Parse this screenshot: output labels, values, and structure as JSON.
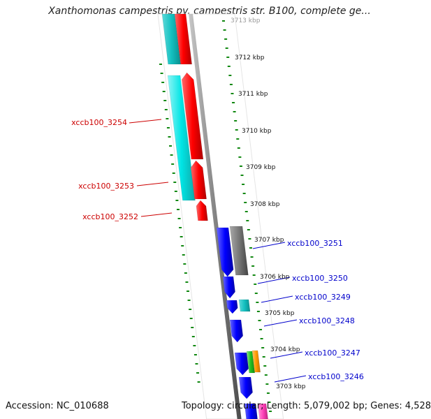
{
  "title": "Xanthomonas campestris pv. campestris str. B100, complete ge...",
  "footer": {
    "accession": "Accession: NC_010688",
    "summary": "Topology: circular; Length: 5,079,002 bp; Genes: 4,528"
  },
  "colors": {
    "cds_forward": "#ff0000",
    "cds_reverse": "#0000ff",
    "ruler_ticks": "#118811",
    "backbone": "#888888",
    "label_forward": "#cc0000",
    "label_reverse": "#0000cc"
  },
  "ruler": {
    "labels": [
      "3713 kbp",
      "3712 kbp",
      "3711 kbp",
      "3710 kbp",
      "3709 kbp",
      "3708 kbp",
      "3707 kbp",
      "3706 kbp",
      "3705 kbp",
      "3704 kbp",
      "3703 kbp"
    ]
  },
  "genes": [
    {
      "label": "xccb100_3254",
      "strand": "forward"
    },
    {
      "label": "xccb100_3253",
      "strand": "forward"
    },
    {
      "label": "xccb100_3252",
      "strand": "forward"
    },
    {
      "label": "xccb100_3251",
      "strand": "reverse"
    },
    {
      "label": "xccb100_3250",
      "strand": "reverse"
    },
    {
      "label": "xccb100_3249",
      "strand": "reverse"
    },
    {
      "label": "xccb100_3248",
      "strand": "reverse"
    },
    {
      "label": "xccb100_3247",
      "strand": "reverse"
    },
    {
      "label": "xccb100_3246",
      "strand": "reverse"
    }
  ]
}
